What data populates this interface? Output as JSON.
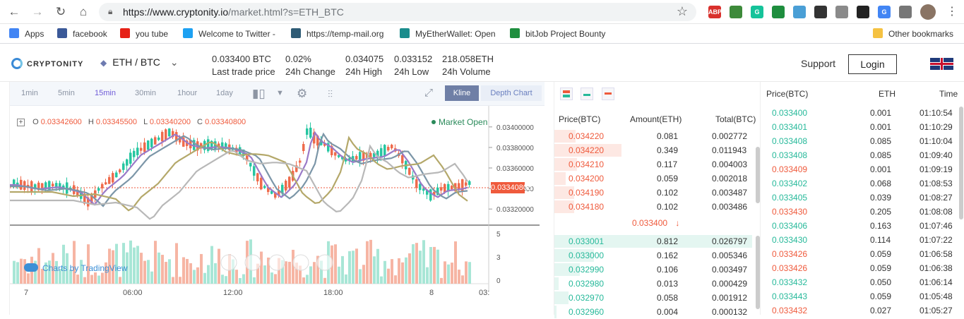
{
  "browser": {
    "url_host": "https://www.cryptonity.io",
    "url_path": "/market.html?s=ETH_BTC",
    "bookmarks": [
      {
        "label": "Apps",
        "color": "#4285f4"
      },
      {
        "label": "facebook",
        "color": "#3b5998"
      },
      {
        "label": "you tube",
        "color": "#e62117"
      },
      {
        "label": "Welcome to Twitter -",
        "color": "#1da1f2"
      },
      {
        "label": "https://temp-mail.org",
        "color": "#2e5b75"
      },
      {
        "label": "MyEtherWallet: Open",
        "color": "#1a8c8c"
      },
      {
        "label": "bitJob Project Bounty",
        "color": "#1e8e3e"
      }
    ],
    "other_bookmarks": "Other bookmarks",
    "extensions": [
      {
        "label": "ABP",
        "color": "#d9302c"
      },
      {
        "label": "",
        "color": "#3d8a3a"
      },
      {
        "label": "G",
        "color": "#15c39a"
      },
      {
        "label": "",
        "color": "#1e8e3e"
      },
      {
        "label": "",
        "color": "#4a9fd6"
      },
      {
        "label": "",
        "color": "#333333"
      },
      {
        "label": "",
        "color": "#8a8a8a"
      },
      {
        "label": "",
        "color": "#222222"
      },
      {
        "label": "G",
        "color": "#4285f4"
      },
      {
        "label": "",
        "color": "#777777"
      }
    ]
  },
  "header": {
    "logo": "CRYPTONITY",
    "pair": "ETH / BTC",
    "stats": [
      {
        "value": "0.033400",
        "unit": " BTC",
        "label": "Last trade price",
        "color": "red"
      },
      {
        "value": "0.02%",
        "unit": "",
        "label": "24h Change",
        "color": "green"
      },
      {
        "value": "0.034075",
        "unit": "",
        "label": "24h High",
        "color": ""
      },
      {
        "value": "0.033152",
        "unit": "",
        "label": "24h Low",
        "color": ""
      },
      {
        "value": "218.058",
        "unit": "ETH",
        "label": "24h Volume",
        "color": ""
      }
    ],
    "support": "Support",
    "login": "Login"
  },
  "chart_toolbar": {
    "timeframes": [
      "1min",
      "5min",
      "15min",
      "30min",
      "1hour",
      "1day"
    ],
    "active_timeframe": "15min",
    "kline": "Kline",
    "depth": "Depth Chart"
  },
  "chart_legend": {
    "o_label": "O",
    "o": "0.03342600",
    "h_label": "H",
    "h": "0.03345500",
    "l_label": "L",
    "l": "0.03340200",
    "c_label": "C",
    "c": "0.03340800",
    "market_status": "Market Open",
    "brand": "Charts by TradingView",
    "last_price": "0.03340800"
  },
  "chart_data": {
    "type": "candlestick",
    "y_axis_ticks": [
      "0.03400000",
      "0.03380000",
      "0.03360000",
      "0.03340000",
      "0.03320000"
    ],
    "y_range": [
      0.03305,
      0.03415
    ],
    "volume_axis_ticks": [
      "5",
      "3",
      "0"
    ],
    "x_axis_ticks": [
      "7",
      "06:00",
      "12:00",
      "18:00",
      "8",
      "03:"
    ]
  },
  "order_book": {
    "headers": {
      "price": "Price(BTC)",
      "amount": "Amount(ETH)",
      "total": "Total(BTC)"
    },
    "asks": [
      {
        "price": "0.034220",
        "amount": "0.081",
        "total": "0.002772",
        "depth": 0.32
      },
      {
        "price": "0.034220",
        "amount": "0.349",
        "total": "0.011943",
        "depth": 1.0
      },
      {
        "price": "0.034210",
        "amount": "0.117",
        "total": "0.004003",
        "depth": 0.34
      },
      {
        "price": "0.034200",
        "amount": "0.059",
        "total": "0.002018",
        "depth": 0.17
      },
      {
        "price": "0.034190",
        "amount": "0.102",
        "total": "0.003487",
        "depth": 0.29
      },
      {
        "price": "0.034180",
        "amount": "0.102",
        "total": "0.003486",
        "depth": 0.29
      }
    ],
    "mid_price": "0.033400",
    "mid_arrow": "↓",
    "bids": [
      {
        "price": "0.033001",
        "amount": "0.812",
        "total": "0.026797",
        "depth": 1.0
      },
      {
        "price": "0.033000",
        "amount": "0.162",
        "total": "0.005346",
        "depth": 0.2
      },
      {
        "price": "0.032990",
        "amount": "0.106",
        "total": "0.003497",
        "depth": 0.13
      },
      {
        "price": "0.032980",
        "amount": "0.013",
        "total": "0.000429",
        "depth": 0.02
      },
      {
        "price": "0.032970",
        "amount": "0.058",
        "total": "0.001912",
        "depth": 0.07
      },
      {
        "price": "0.032960",
        "amount": "0.004",
        "total": "0.000132",
        "depth": 0.01
      }
    ]
  },
  "trades": {
    "headers": {
      "price": "Price(BTC)",
      "amount": "ETH",
      "time": "Time"
    },
    "rows": [
      {
        "price": "0.033400",
        "amount": "0.001",
        "time": "01:10:54",
        "side": "buy"
      },
      {
        "price": "0.033401",
        "amount": "0.001",
        "time": "01:10:29",
        "side": "buy"
      },
      {
        "price": "0.033408",
        "amount": "0.085",
        "time": "01:10:04",
        "side": "buy"
      },
      {
        "price": "0.033408",
        "amount": "0.085",
        "time": "01:09:40",
        "side": "buy"
      },
      {
        "price": "0.033409",
        "amount": "0.001",
        "time": "01:09:19",
        "side": "sell"
      },
      {
        "price": "0.033402",
        "amount": "0.068",
        "time": "01:08:53",
        "side": "buy"
      },
      {
        "price": "0.033405",
        "amount": "0.039",
        "time": "01:08:27",
        "side": "buy"
      },
      {
        "price": "0.033430",
        "amount": "0.205",
        "time": "01:08:08",
        "side": "sell"
      },
      {
        "price": "0.033406",
        "amount": "0.163",
        "time": "01:07:46",
        "side": "buy"
      },
      {
        "price": "0.033430",
        "amount": "0.114",
        "time": "01:07:22",
        "side": "buy"
      },
      {
        "price": "0.033426",
        "amount": "0.059",
        "time": "01:06:58",
        "side": "sell"
      },
      {
        "price": "0.033426",
        "amount": "0.059",
        "time": "01:06:38",
        "side": "sell"
      },
      {
        "price": "0.033432",
        "amount": "0.050",
        "time": "01:06:14",
        "side": "buy"
      },
      {
        "price": "0.033443",
        "amount": "0.059",
        "time": "01:05:48",
        "side": "buy"
      },
      {
        "price": "0.033432",
        "amount": "0.027",
        "time": "01:05:27",
        "side": "sell"
      }
    ]
  }
}
